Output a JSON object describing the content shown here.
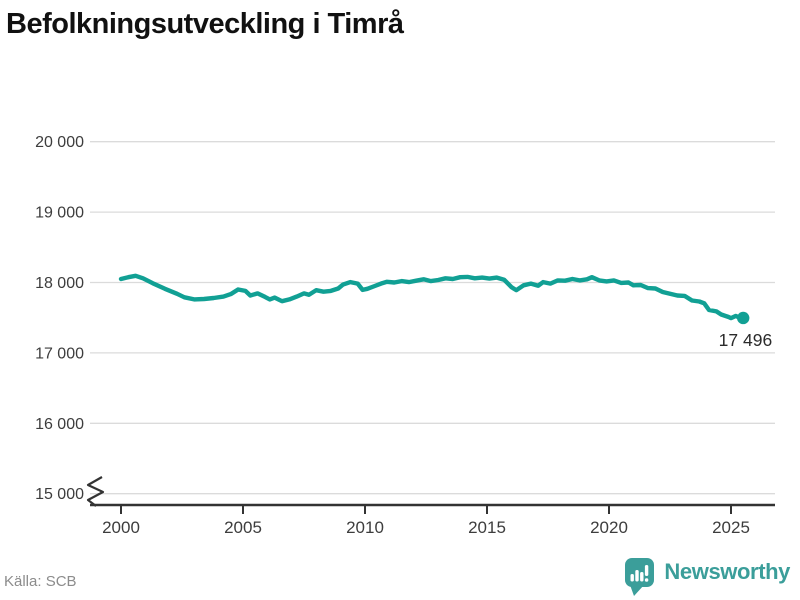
{
  "title": "Befolkningsutveckling i Timrå",
  "source": "Källa: SCB",
  "branding": {
    "wordmark": "Newsworthy",
    "logo_icon": "bar-chart-speech-bubble"
  },
  "colors": {
    "line": "#11A094",
    "brand": "#3B9E9A",
    "grid": "#DBDBDB",
    "axis": "#333333",
    "tick_label": "#3D3D3D",
    "title": "#111111",
    "source": "#8C8C8C",
    "end_label": "#2B2B2B",
    "background": "#FFFFFF"
  },
  "chart_data": {
    "type": "line",
    "title": "Befolkningsutveckling i Timrå",
    "xlabel": "",
    "ylabel": "",
    "grid": true,
    "legend": "none",
    "axis_break_below": 15000,
    "ylim": [
      15000,
      20000
    ],
    "xlim": [
      1998.7,
      2026.8
    ],
    "yticks": [
      20000,
      19000,
      18000,
      17000,
      16000,
      15000
    ],
    "ytick_labels": [
      "20 000",
      "19 000",
      "18 000",
      "17 000",
      "16 000",
      "15 000"
    ],
    "xticks": [
      2000,
      2005,
      2010,
      2015,
      2020,
      2025
    ],
    "xtick_labels": [
      "2000",
      "2005",
      "2010",
      "2015",
      "2020",
      "2025"
    ],
    "last_value": 17496,
    "last_point_label": "17 496",
    "series_name": "Befolkning Timrå",
    "x": [
      2000.0,
      2000.3,
      2000.6,
      2000.9,
      2001.3,
      2001.8,
      2002.3,
      2002.6,
      2003.0,
      2003.4,
      2003.8,
      2004.2,
      2004.5,
      2004.8,
      2005.1,
      2005.3,
      2005.6,
      2005.9,
      2006.1,
      2006.3,
      2006.6,
      2006.9,
      2007.2,
      2007.5,
      2007.7,
      2008.0,
      2008.3,
      2008.6,
      2008.9,
      2009.1,
      2009.4,
      2009.7,
      2009.9,
      2010.1,
      2010.4,
      2010.7,
      2010.9,
      2011.2,
      2011.5,
      2011.8,
      2012.1,
      2012.4,
      2012.7,
      2013.0,
      2013.3,
      2013.6,
      2013.9,
      2014.2,
      2014.5,
      2014.8,
      2015.1,
      2015.4,
      2015.7,
      2016.0,
      2016.2,
      2016.5,
      2016.8,
      2017.1,
      2017.3,
      2017.6,
      2017.9,
      2018.2,
      2018.5,
      2018.8,
      2019.1,
      2019.3,
      2019.6,
      2019.9,
      2020.2,
      2020.5,
      2020.8,
      2021.0,
      2021.3,
      2021.6,
      2021.9,
      2022.2,
      2022.5,
      2022.8,
      2023.1,
      2023.4,
      2023.7,
      2023.9,
      2024.1,
      2024.4,
      2024.6,
      2024.9,
      2025.0,
      2025.2,
      2025.4,
      2025.5
    ],
    "y": [
      18050,
      18075,
      18095,
      18060,
      17990,
      17910,
      17840,
      17790,
      17760,
      17765,
      17780,
      17800,
      17835,
      17900,
      17880,
      17815,
      17845,
      17795,
      17760,
      17785,
      17735,
      17760,
      17800,
      17845,
      17825,
      17890,
      17870,
      17880,
      17915,
      17970,
      18005,
      17985,
      17895,
      17910,
      17950,
      17990,
      18010,
      18000,
      18020,
      18005,
      18025,
      18045,
      18020,
      18035,
      18060,
      18050,
      18075,
      18080,
      18060,
      18070,
      18055,
      18070,
      18040,
      17935,
      17890,
      17960,
      17985,
      17955,
      18005,
      17985,
      18030,
      18025,
      18050,
      18030,
      18045,
      18075,
      18030,
      18015,
      18030,
      17995,
      18000,
      17960,
      17965,
      17920,
      17915,
      17865,
      17840,
      17815,
      17810,
      17745,
      17730,
      17705,
      17610,
      17590,
      17545,
      17510,
      17495,
      17525,
      17490,
      17496
    ]
  }
}
